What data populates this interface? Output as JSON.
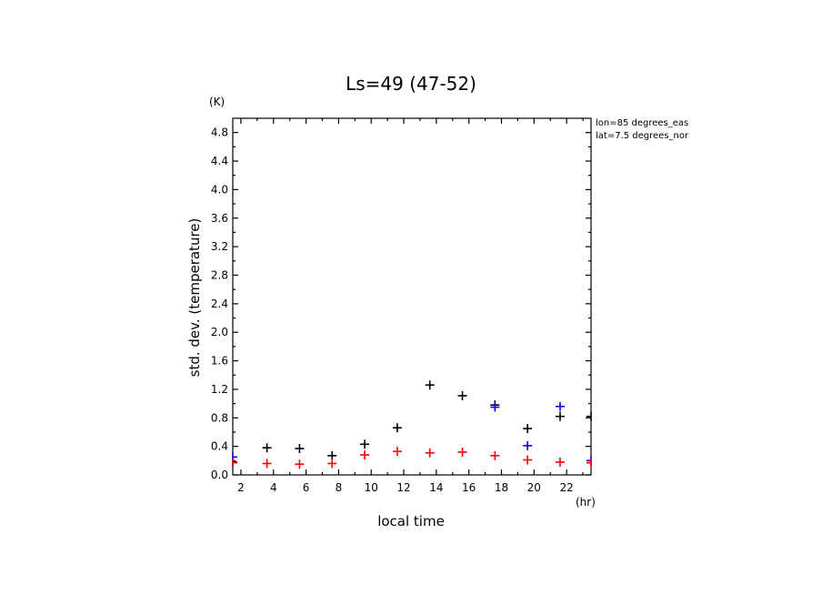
{
  "chart_data": {
    "type": "scatter",
    "title": "Ls=49 (47-52)",
    "ylabel": "std. dev. (temperature)",
    "xlabel": "local time",
    "y_unit": "(K)",
    "x_unit": "(hr)",
    "annotations": [
      "lon=85 degrees_eas",
      "lat=7.5 degrees_nor"
    ],
    "xlim": [
      1.5,
      23.5
    ],
    "ylim": [
      0,
      5.0
    ],
    "x_ticks": [
      "2",
      "4",
      "6",
      "8",
      "10",
      "12",
      "14",
      "16",
      "18",
      "20",
      "22"
    ],
    "y_ticks": [
      "0.0",
      "0.4",
      "0.8",
      "1.2",
      "1.6",
      "2.0",
      "2.4",
      "2.8",
      "3.2",
      "3.6",
      "4.0",
      "4.4",
      "4.8"
    ],
    "grid": false,
    "series": [
      {
        "color": "#000000",
        "x": [
          1.5,
          3.6,
          5.6,
          7.6,
          9.6,
          11.6,
          13.6,
          15.6,
          17.6,
          19.6,
          21.6,
          23.5
        ],
        "y": [
          0.18,
          0.38,
          0.37,
          0.27,
          0.43,
          0.66,
          1.26,
          1.11,
          0.98,
          0.65,
          0.82,
          0.82
        ]
      },
      {
        "color": "#0000ff",
        "x": [
          1.5,
          17.6,
          19.6,
          21.6,
          23.5
        ],
        "y": [
          0.25,
          0.95,
          0.41,
          0.96,
          0.2
        ]
      },
      {
        "color": "#ff0000",
        "x": [
          1.5,
          3.6,
          5.6,
          7.6,
          9.6,
          11.6,
          13.6,
          15.6,
          17.6,
          19.6,
          21.6,
          23.5
        ],
        "y": [
          0.17,
          0.16,
          0.15,
          0.16,
          0.28,
          0.33,
          0.31,
          0.32,
          0.27,
          0.21,
          0.18,
          0.17
        ]
      }
    ]
  }
}
